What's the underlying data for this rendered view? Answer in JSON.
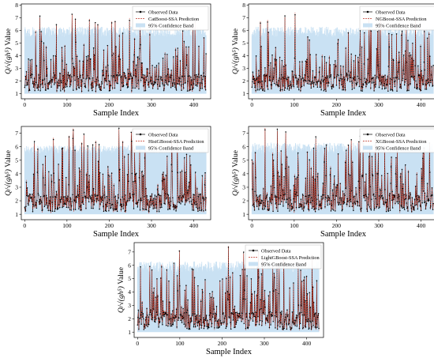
{
  "chart_data": [
    {
      "type": "line",
      "model": "CatBoost-SSA",
      "xlabel": "Sample Index",
      "ylabel": "Value",
      "ylabel_symbol": "Q/√(gh⁵)",
      "x_ticks": [
        0,
        100,
        200,
        300,
        400
      ],
      "y_ticks": [
        1,
        2,
        3,
        4,
        5,
        6,
        7,
        8
      ],
      "xlim": [
        -8,
        440
      ],
      "ylim": [
        0.6,
        8.1
      ],
      "legend": {
        "placement": "top-right",
        "entries": [
          "Observed Data",
          "CatBoost-SSA Prediction",
          "95% Confidence Band"
        ]
      },
      "series": [
        {
          "name": "Observed Data",
          "color": "#000000",
          "marker": "circle"
        },
        {
          "name": "CatBoost-SSA Prediction",
          "color": "#c0392b",
          "style": "dashed"
        },
        {
          "name": "95% Confidence Band",
          "color": "#c9e1f3",
          "style": "band",
          "upper_range": [
            5.5,
            6.3
          ],
          "lower": 1.0
        }
      ],
      "seed": 11
    },
    {
      "type": "line",
      "model": "NGBoost-SSA",
      "xlabel": "Sample Index",
      "ylabel": "Value",
      "ylabel_symbol": "Q/√(gh⁵)",
      "x_ticks": [
        0,
        100,
        200,
        300,
        400
      ],
      "y_ticks": [
        1,
        2,
        3,
        4,
        5,
        6,
        7,
        8
      ],
      "xlim": [
        -8,
        440
      ],
      "ylim": [
        0.6,
        8.1
      ],
      "legend": {
        "placement": "top-right",
        "entries": [
          "Observed Data",
          "NGBoost-SSA Prediction",
          "95% Confidence Band"
        ]
      },
      "series": [
        {
          "name": "Observed Data",
          "color": "#000000",
          "marker": "circle"
        },
        {
          "name": "NGBoost-SSA Prediction",
          "color": "#c0392b",
          "style": "dashed"
        },
        {
          "name": "95% Confidence Band",
          "color": "#c9e1f3",
          "style": "band",
          "upper_range": [
            5.5,
            6.3
          ],
          "lower": 1.0
        }
      ],
      "seed": 23
    },
    {
      "type": "line",
      "model": "HistGBoost-SSA",
      "xlabel": "Sample Index",
      "ylabel": "Value",
      "ylabel_symbol": "Q/√(gh⁵)",
      "x_ticks": [
        0,
        100,
        200,
        300,
        400
      ],
      "y_ticks": [
        1,
        2,
        3,
        4,
        5,
        6,
        7
      ],
      "xlim": [
        -8,
        440
      ],
      "ylim": [
        0.6,
        7.5
      ],
      "legend": {
        "placement": "top-right",
        "entries": [
          "Observed Data",
          "HistGBoost-SSA Prediction",
          "95% Confidence Band"
        ]
      },
      "series": [
        {
          "name": "Observed Data",
          "color": "#000000",
          "marker": "circle"
        },
        {
          "name": "HistGBoost-SSA Prediction",
          "color": "#c0392b",
          "style": "dashed"
        },
        {
          "name": "95% Confidence Band",
          "color": "#c9e1f3",
          "style": "band",
          "upper_range": [
            5.5,
            6.1
          ],
          "lower": 1.0
        }
      ],
      "seed": 37
    },
    {
      "type": "line",
      "model": "XGBoost-SSA",
      "xlabel": "Sample Index",
      "ylabel": "Value",
      "ylabel_symbol": "Q/√(gh⁵)",
      "x_ticks": [
        0,
        100,
        200,
        300,
        400
      ],
      "y_ticks": [
        1,
        2,
        3,
        4,
        5,
        6,
        7
      ],
      "xlim": [
        -8,
        440
      ],
      "ylim": [
        0.6,
        7.5
      ],
      "legend": {
        "placement": "top-right",
        "entries": [
          "Observed Data",
          "XGBoost-SSA Prediction",
          "95% Confidence Band"
        ]
      },
      "series": [
        {
          "name": "Observed Data",
          "color": "#000000",
          "marker": "circle"
        },
        {
          "name": "XGBoost-SSA Prediction",
          "color": "#c0392b",
          "style": "dashed"
        },
        {
          "name": "95% Confidence Band",
          "color": "#c9e1f3",
          "style": "band",
          "upper_range": [
            5.5,
            6.3
          ],
          "lower": 1.0
        }
      ],
      "seed": 51
    },
    {
      "type": "line",
      "model": "LightGBoost-SSA",
      "xlabel": "Sample Index",
      "ylabel": "Value",
      "ylabel_symbol": "Q/√(gh⁵)",
      "x_ticks": [
        0,
        100,
        200,
        300,
        400
      ],
      "y_ticks": [
        1,
        2,
        3,
        4,
        5,
        6,
        7
      ],
      "xlim": [
        -8,
        440
      ],
      "ylim": [
        0.6,
        7.7
      ],
      "legend": {
        "placement": "top-right",
        "entries": [
          "Observed Data",
          "LightGBoost-SSA Prediction",
          "95% Confidence Band"
        ]
      },
      "series": [
        {
          "name": "Observed Data",
          "color": "#000000",
          "marker": "circle"
        },
        {
          "name": "LightGBoost-SSA Prediction",
          "color": "#c0392b",
          "style": "dashed"
        },
        {
          "name": "95% Confidence Band",
          "color": "#c9e1f3",
          "style": "band",
          "upper_range": [
            5.5,
            6.3
          ],
          "lower": 1.0
        }
      ],
      "seed": 67
    }
  ]
}
